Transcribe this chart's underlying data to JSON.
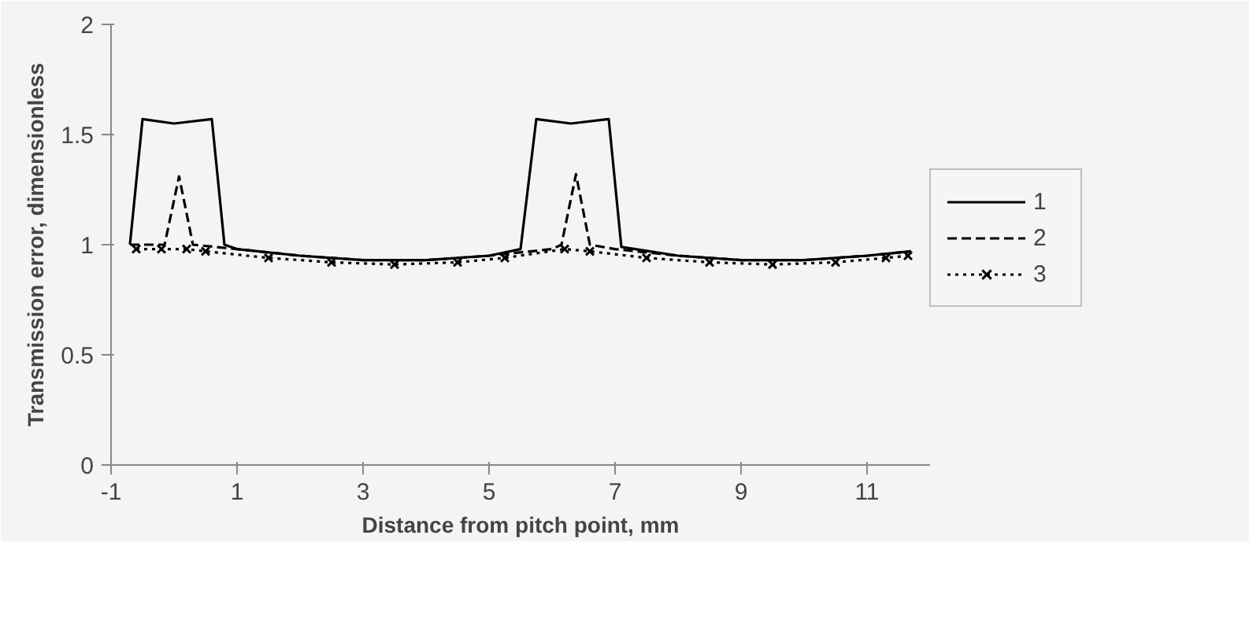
{
  "chart_data": {
    "type": "line",
    "xlabel": "Distance from pitch point, mm",
    "ylabel": "Transmission error, dimensionless",
    "xlim": [
      -1,
      12
    ],
    "ylim": [
      0,
      2
    ],
    "xticks": [
      -1,
      1,
      3,
      5,
      7,
      9,
      11
    ],
    "yticks": [
      0,
      0.5,
      1,
      1.5,
      2
    ],
    "grid": false,
    "legend": "right",
    "series": [
      {
        "name": "1",
        "color": "#000000",
        "line_style": "solid",
        "marker": "none",
        "x": [
          -0.7,
          -0.5,
          0,
          0.6,
          0.8,
          1,
          2,
          3,
          4,
          5,
          5.5,
          5.75,
          6.3,
          6.9,
          7.1,
          8,
          9,
          10,
          11,
          11.7
        ],
        "values": [
          1.0,
          1.57,
          1.55,
          1.57,
          1.0,
          0.98,
          0.95,
          0.93,
          0.93,
          0.95,
          0.98,
          1.57,
          1.55,
          1.57,
          0.99,
          0.95,
          0.93,
          0.93,
          0.95,
          0.97
        ]
      },
      {
        "name": "2",
        "color": "#000000",
        "line_style": "dashed",
        "marker": "none",
        "x": [
          -0.7,
          -0.15,
          0.08,
          0.3,
          1,
          2,
          3,
          4,
          5,
          6,
          6.15,
          6.38,
          6.6,
          7,
          8,
          9,
          10,
          11,
          11.7
        ],
        "values": [
          1.0,
          1.0,
          1.31,
          1.0,
          0.98,
          0.95,
          0.93,
          0.93,
          0.95,
          0.98,
          1.0,
          1.32,
          1.0,
          0.98,
          0.95,
          0.93,
          0.93,
          0.95,
          0.97
        ]
      },
      {
        "name": "3",
        "color": "#000000",
        "line_style": "dotted",
        "marker": "cross",
        "x": [
          -0.6,
          -0.2,
          0.2,
          0.5,
          1.5,
          2.5,
          3.5,
          4.5,
          5.25,
          6.2,
          6.6,
          7.5,
          8.5,
          9.5,
          10.5,
          11.3,
          11.65
        ],
        "values": [
          0.98,
          0.98,
          0.98,
          0.97,
          0.94,
          0.92,
          0.91,
          0.92,
          0.94,
          0.98,
          0.97,
          0.94,
          0.92,
          0.91,
          0.92,
          0.94,
          0.95
        ]
      }
    ]
  }
}
